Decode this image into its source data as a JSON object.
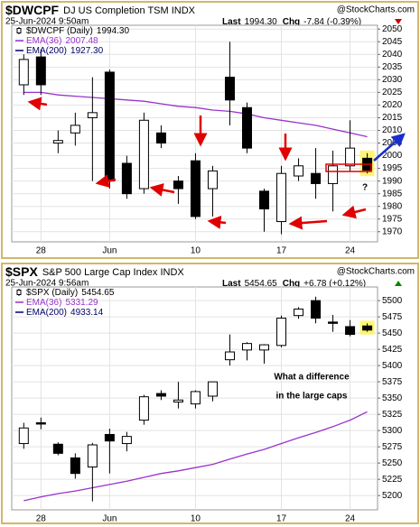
{
  "chart_data": [
    {
      "type": "candlestick",
      "title": "$DWCPF",
      "subtitle": "DJ US Completion TSM INDX",
      "watermark": "@StockCharts.com",
      "date": "25-Jun-2024 9:50am",
      "last_label": "Last",
      "last": "1994.30",
      "chg_label": "Chg",
      "chg": "-7.84 (-0.39%)",
      "chg_color": "#cc0000",
      "legend": [
        {
          "name": "$DWCPF (Daily)",
          "value": "1994.30",
          "color": "#000000"
        },
        {
          "name": "EMA(36)",
          "value": "2007.48",
          "color": "#9933cc"
        },
        {
          "name": "EMA(200)",
          "value": "1927.30",
          "color": "#000066"
        }
      ],
      "categories": [
        null,
        "28",
        null,
        null,
        null,
        "Jun",
        null,
        null,
        null,
        null,
        "10",
        null,
        null,
        null,
        null,
        "17",
        null,
        null,
        null,
        "24",
        null
      ],
      "open": [
        2028,
        2039,
        2005,
        2009,
        2015,
        2033,
        1997,
        1987,
        2009,
        1990,
        1998,
        1987,
        2031,
        2019,
        1986,
        1974,
        1992,
        1993,
        1989,
        1996,
        1999
      ],
      "high": [
        2040,
        2042,
        2010,
        2017,
        2031,
        2034,
        2000,
        2017,
        2012,
        1992,
        2001,
        1996,
        2045,
        2021,
        1987,
        1996,
        1999,
        2003,
        2002,
        2014,
        2001
      ],
      "low": [
        2024,
        2024,
        2001,
        2004,
        1990,
        1987,
        1983,
        1985,
        2003,
        1981,
        1975,
        1976,
        2012,
        2001,
        1970,
        1969,
        1990,
        1983,
        1978,
        1994,
        1993
      ],
      "close": [
        2038,
        2028,
        2006,
        2012,
        2017,
        1990,
        1985,
        2014,
        2005,
        1987,
        1976,
        1994,
        2022,
        2003,
        1979,
        1993,
        1996,
        1989,
        1996,
        2003,
        1994.3
      ],
      "series": [
        {
          "name": "EMA(36)",
          "color": "#9933cc",
          "values": [
            2025,
            2025,
            2024,
            2023.5,
            2023,
            2022.5,
            2022,
            2021.5,
            2020.5,
            2019.5,
            2019,
            2018,
            2017.5,
            2016.5,
            2015,
            2014,
            2013,
            2012,
            2010.5,
            2009,
            2007.5
          ]
        }
      ],
      "ylim": [
        1966,
        2051.5
      ],
      "yticks": [
        1970,
        1975,
        1980,
        1985,
        1990,
        1995,
        2000,
        2005,
        2010,
        2015,
        2020,
        2025,
        2030,
        2035,
        2040,
        2045,
        2050
      ],
      "grid": true,
      "annotations": [
        "?"
      ]
    },
    {
      "type": "candlestick",
      "title": "$SPX",
      "subtitle": "S&P 500 Large Cap Index INDX",
      "watermark": "@StockCharts.com",
      "date": "25-Jun-2024 9:56am",
      "last_label": "Last",
      "last": "5454.65",
      "chg_label": "Chg",
      "chg": "+6.78 (+0.12%)",
      "chg_color": "#008800",
      "legend": [
        {
          "name": "$SPX (Daily)",
          "value": "5454.65",
          "color": "#000000"
        },
        {
          "name": "EMA(36)",
          "value": "5331.29",
          "color": "#9933cc"
        },
        {
          "name": "EMA(200)",
          "value": "4933.14",
          "color": "#000066"
        }
      ],
      "categories": [
        null,
        "28",
        null,
        null,
        null,
        "Jun",
        null,
        null,
        null,
        null,
        "10",
        null,
        null,
        null,
        null,
        "17",
        null,
        null,
        null,
        "24",
        null
      ],
      "open": [
        5280,
        5312,
        5279,
        5258,
        5244,
        5294,
        5280,
        5316,
        5357,
        5344,
        5341,
        5353,
        5409,
        5424,
        5424,
        5431,
        5477,
        5500,
        5467,
        5460,
        5461
      ],
      "high": [
        5312,
        5320,
        5282,
        5265,
        5281,
        5303,
        5298,
        5355,
        5362,
        5375,
        5362,
        5375,
        5448,
        5436,
        5433,
        5477,
        5490,
        5506,
        5478,
        5470,
        5465
      ],
      "low": [
        5272,
        5302,
        5262,
        5226,
        5191,
        5234,
        5268,
        5309,
        5347,
        5334,
        5334,
        5345,
        5400,
        5408,
        5403,
        5428,
        5472,
        5465,
        5452,
        5445,
        5452
      ],
      "close": [
        5304,
        5310,
        5265,
        5234,
        5278,
        5284,
        5291,
        5352,
        5353,
        5347,
        5360,
        5375,
        5421,
        5434,
        5432,
        5473,
        5487,
        5473,
        5465,
        5448,
        5454.65
      ],
      "series": [
        {
          "name": "EMA(36)",
          "color": "#9933cc",
          "values": [
            5192,
            5198,
            5203,
            5207,
            5212,
            5217,
            5222,
            5228,
            5234,
            5238,
            5243,
            5248,
            5256,
            5264,
            5271,
            5280,
            5289,
            5297,
            5306,
            5316,
            5329
          ]
        }
      ],
      "ylim": [
        5178,
        5521
      ],
      "yticks": [
        5200,
        5225,
        5250,
        5275,
        5300,
        5325,
        5350,
        5375,
        5400,
        5425,
        5450,
        5475,
        5500
      ],
      "grid": true,
      "annotations": [
        "What a difference",
        "in the large caps"
      ]
    }
  ]
}
